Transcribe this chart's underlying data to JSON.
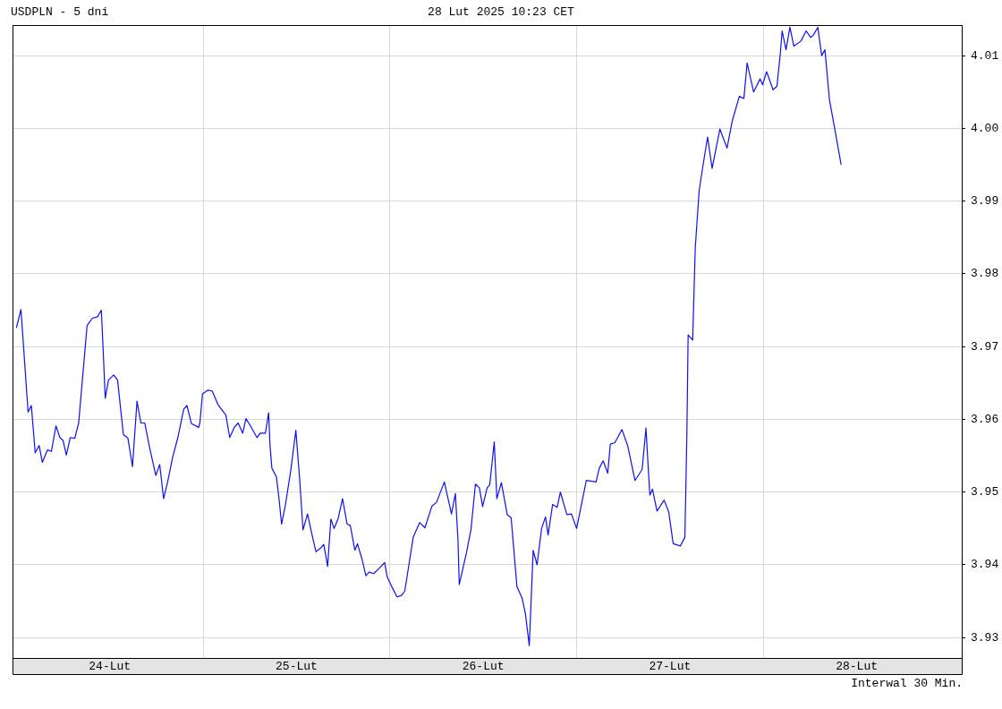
{
  "chart_data": {
    "type": "line",
    "title": "USDPLN - 5 dni",
    "subtitle": "28 Lut 2025 10:23 CET",
    "annotations": [
      "Interwal 30 Min."
    ],
    "x": [
      "2025-02-24T00:00",
      "2025-02-24T00:35",
      "2025-02-24T00:50",
      "2025-02-24T01:30",
      "2025-02-24T01:55",
      "2025-02-24T02:25",
      "2025-02-24T02:55",
      "2025-02-24T03:20",
      "2025-02-24T04:00",
      "2025-02-24T04:30",
      "2025-02-24T05:05",
      "2025-02-24T05:35",
      "2025-02-24T06:00",
      "2025-02-24T06:25",
      "2025-02-24T06:55",
      "2025-02-24T07:30",
      "2025-02-24T08:00",
      "2025-02-24T09:05",
      "2025-02-24T09:45",
      "2025-02-24T10:25",
      "2025-02-24T10:55",
      "2025-02-24T11:10",
      "2025-02-24T11:25",
      "2025-02-24T11:50",
      "2025-02-24T12:30",
      "2025-02-24T13:00",
      "2025-02-24T13:45",
      "2025-02-24T14:20",
      "2025-02-24T14:55",
      "2025-02-24T15:30",
      "2025-02-24T16:00",
      "2025-02-24T16:30",
      "2025-02-24T17:05",
      "2025-02-24T17:55",
      "2025-02-24T18:25",
      "2025-02-24T18:55",
      "2025-02-24T19:25",
      "2025-02-24T20:05",
      "2025-02-24T20:45",
      "2025-02-24T21:30",
      "2025-02-24T21:55",
      "2025-02-24T22:30",
      "2025-02-24T23:25",
      "2025-02-24T23:35",
      "2025-02-24T23:55",
      "2025-02-25T00:35",
      "2025-02-25T01:10",
      "2025-02-25T01:55",
      "2025-02-25T02:55",
      "2025-02-25T03:25",
      "2025-02-25T04:00",
      "2025-02-25T04:30",
      "2025-02-25T05:05",
      "2025-02-25T05:30",
      "2025-02-25T06:05",
      "2025-02-25T06:55",
      "2025-02-25T07:20",
      "2025-02-25T08:00",
      "2025-02-25T08:25",
      "2025-02-25T08:35",
      "2025-02-25T08:50",
      "2025-02-25T09:25",
      "2025-02-25T09:45",
      "2025-02-25T10:05",
      "2025-02-25T10:35",
      "2025-02-25T11:15",
      "2025-02-25T11:55",
      "2025-02-25T12:25",
      "2025-02-25T12:50",
      "2025-02-25T13:25",
      "2025-02-25T13:55",
      "2025-02-25T14:30",
      "2025-02-25T15:05",
      "2025-02-25T15:30",
      "2025-02-25T16:00",
      "2025-02-25T16:25",
      "2025-02-25T16:50",
      "2025-02-25T17:20",
      "2025-02-25T17:55",
      "2025-02-25T18:30",
      "2025-02-25T18:55",
      "2025-02-25T19:30",
      "2025-02-25T19:50",
      "2025-02-25T20:25",
      "2025-02-25T20:55",
      "2025-02-25T21:20",
      "2025-02-25T21:55",
      "2025-02-25T22:30",
      "2025-02-25T23:20",
      "2025-02-25T23:40",
      "2025-02-26T00:15",
      "2025-02-26T00:55",
      "2025-02-26T01:30",
      "2025-02-26T01:55",
      "2025-02-26T03:00",
      "2025-02-26T03:50",
      "2025-02-26T04:30",
      "2025-02-26T05:25",
      "2025-02-26T06:00",
      "2025-02-26T07:00",
      "2025-02-26T07:55",
      "2025-02-26T08:25",
      "2025-02-26T08:45",
      "2025-02-26T08:55",
      "2025-02-26T09:50",
      "2025-02-26T10:25",
      "2025-02-26T11:00",
      "2025-02-26T11:30",
      "2025-02-26T11:55",
      "2025-02-26T12:30",
      "2025-02-26T12:50",
      "2025-02-26T13:25",
      "2025-02-26T13:45",
      "2025-02-26T14:20",
      "2025-02-26T15:05",
      "2025-02-26T15:35",
      "2025-02-26T16:20",
      "2025-02-26T17:00",
      "2025-02-26T17:25",
      "2025-02-26T17:55",
      "2025-02-26T18:10",
      "2025-02-26T18:25",
      "2025-02-26T18:55",
      "2025-02-26T19:30",
      "2025-02-26T20:00",
      "2025-02-26T20:20",
      "2025-02-26T20:55",
      "2025-02-26T21:30",
      "2025-02-26T21:55",
      "2025-02-26T22:45",
      "2025-02-26T23:20",
      "2025-02-27T00:00",
      "2025-02-27T01:15",
      "2025-02-27T02:30",
      "2025-02-27T02:55",
      "2025-02-27T03:25",
      "2025-02-27T04:00",
      "2025-02-27T04:20",
      "2025-02-27T04:55",
      "2025-02-27T05:50",
      "2025-02-27T06:35",
      "2025-02-27T07:30",
      "2025-02-27T08:25",
      "2025-02-27T08:55",
      "2025-02-27T09:10",
      "2025-02-27T09:25",
      "2025-02-27T09:45",
      "2025-02-27T10:20",
      "2025-02-27T11:15",
      "2025-02-27T11:50",
      "2025-02-27T12:25",
      "2025-02-27T13:20",
      "2025-02-27T13:55",
      "2025-02-27T14:10",
      "2025-02-27T14:20",
      "2025-02-27T14:55",
      "2025-02-27T15:15",
      "2025-02-27T15:45",
      "2025-02-27T16:05",
      "2025-02-27T16:50",
      "2025-02-27T17:25",
      "2025-02-27T18:25",
      "2025-02-27T19:20",
      "2025-02-27T20:00",
      "2025-02-27T20:55",
      "2025-02-27T21:30",
      "2025-02-27T21:55",
      "2025-02-27T22:45",
      "2025-02-27T23:35",
      "2025-02-27T23:55",
      "2025-02-28T00:25",
      "2025-02-28T01:15",
      "2025-02-28T01:45",
      "2025-02-28T02:10",
      "2025-02-28T02:25",
      "2025-02-28T02:55",
      "2025-02-28T03:25",
      "2025-02-28T03:55",
      "2025-02-28T04:50",
      "2025-02-28T05:30",
      "2025-02-28T06:05",
      "2025-02-28T06:25",
      "2025-02-28T07:00",
      "2025-02-28T07:30",
      "2025-02-28T07:55",
      "2025-02-28T08:30",
      "2025-02-28T09:10",
      "2025-02-28T10:00"
    ],
    "series": [
      {
        "color": "#1010ee",
        "values": [
          3.9726,
          3.9751,
          3.9713,
          3.961,
          3.9619,
          3.9554,
          3.9564,
          3.9541,
          3.9558,
          3.9556,
          3.9591,
          3.9575,
          3.9571,
          3.9551,
          3.9575,
          3.9574,
          3.9595,
          3.9729,
          3.9739,
          3.9741,
          3.975,
          3.9691,
          3.9629,
          3.9654,
          3.9661,
          3.9654,
          3.9579,
          3.9574,
          3.9535,
          3.9625,
          3.9595,
          3.9595,
          3.9563,
          3.9523,
          3.9538,
          3.9491,
          3.9513,
          3.9548,
          3.9575,
          3.9614,
          3.9619,
          3.9594,
          3.9589,
          3.9595,
          3.9635,
          3.964,
          3.9639,
          3.962,
          3.9606,
          3.9575,
          3.9589,
          3.9595,
          3.9581,
          3.9601,
          3.9591,
          3.9575,
          3.9581,
          3.9581,
          3.9609,
          3.9566,
          3.9533,
          3.9521,
          3.9491,
          3.9456,
          3.9483,
          3.9529,
          3.9585,
          3.9516,
          3.9448,
          3.947,
          3.9445,
          3.9418,
          3.9423,
          3.9428,
          3.9398,
          3.9463,
          3.945,
          3.9463,
          3.9491,
          3.9456,
          3.9454,
          3.942,
          3.9429,
          3.9408,
          3.9385,
          3.939,
          3.9388,
          3.9394,
          3.9403,
          3.9383,
          3.937,
          3.9356,
          3.9358,
          3.9364,
          3.9438,
          3.9458,
          3.9451,
          3.9481,
          3.9486,
          3.9514,
          3.947,
          3.9498,
          3.9435,
          3.9373,
          3.9416,
          3.9448,
          3.9511,
          3.9506,
          3.948,
          3.9506,
          3.951,
          3.9569,
          3.9491,
          3.9513,
          3.9469,
          3.9465,
          3.937,
          3.9354,
          3.9333,
          3.9289,
          3.9354,
          3.942,
          3.94,
          3.945,
          3.9466,
          3.9441,
          3.9483,
          3.9479,
          3.95,
          3.9469,
          3.947,
          3.945,
          3.9516,
          3.9514,
          3.9533,
          3.9543,
          3.9526,
          3.9566,
          3.9568,
          3.9586,
          3.9563,
          3.9516,
          3.9531,
          3.9588,
          3.9541,
          3.9496,
          3.9504,
          3.9474,
          3.9489,
          3.9473,
          3.9429,
          3.9426,
          3.9438,
          3.9576,
          3.9716,
          3.9709,
          3.9836,
          3.9914,
          3.9938,
          3.9988,
          3.9945,
          3.9999,
          3.9973,
          4.001,
          4.0044,
          4.0041,
          4.009,
          4.005,
          4.0068,
          4.006,
          4.0078,
          4.0053,
          4.0058,
          4.0101,
          4.0134,
          4.0108,
          4.0139,
          4.0113,
          4.012,
          4.0134,
          4.0125,
          4.0128,
          4.0139,
          4.01,
          4.0108,
          4.0039,
          4.0,
          3.995
        ]
      }
    ],
    "xlim": [
      "2025-02-23T23:30",
      "2025-03-01T01:30"
    ],
    "xticks": [
      {
        "value": "2025-02-24T12:00",
        "label": "24-Lut"
      },
      {
        "value": "2025-02-25T00:00",
        "label": null
      },
      {
        "value": "2025-02-25T12:00",
        "label": "25-Lut"
      },
      {
        "value": "2025-02-26T00:00",
        "label": null
      },
      {
        "value": "2025-02-26T12:00",
        "label": "26-Lut"
      },
      {
        "value": "2025-02-27T00:00",
        "label": null
      },
      {
        "value": "2025-02-27T12:00",
        "label": "27-Lut"
      },
      {
        "value": "2025-02-28T00:00",
        "label": null
      },
      {
        "value": "2025-02-28T12:00",
        "label": "28-Lut"
      }
    ],
    "ylim": [
      3.9272,
      4.0142
    ],
    "yticks": [
      3.93,
      3.94,
      3.95,
      3.96,
      3.97,
      3.98,
      3.99,
      {
        "value": 4,
        "label": "4.00"
      },
      4.01
    ],
    "grid": true,
    "legend": false,
    "marker": "none",
    "line_style": "solid"
  }
}
